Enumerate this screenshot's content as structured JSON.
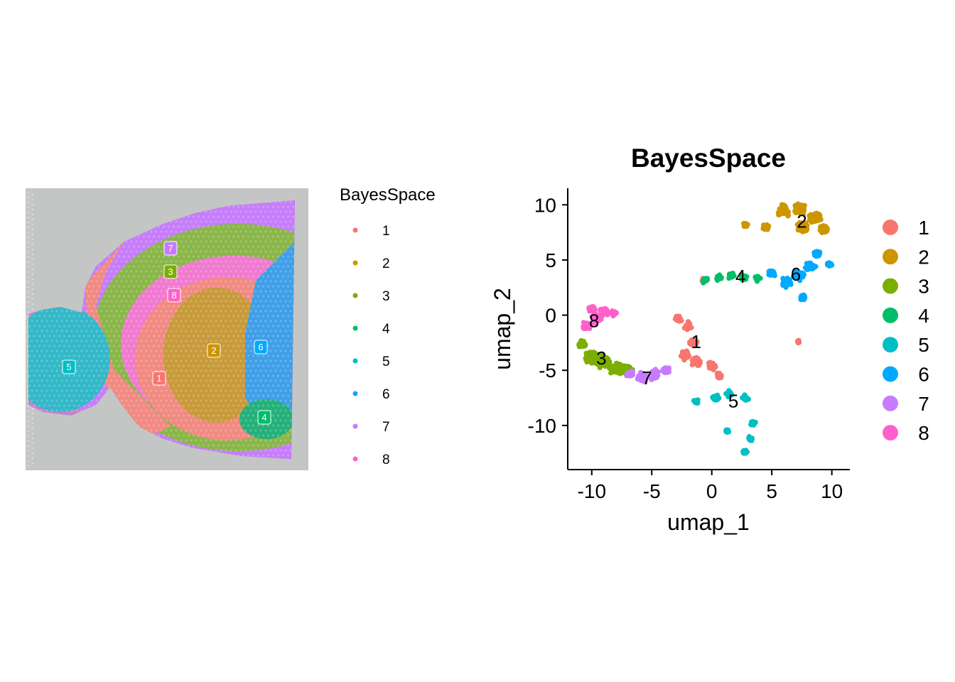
{
  "cluster_colors": {
    "1": "#F8766D",
    "2": "#CD9600",
    "3": "#7CAE00",
    "4": "#00BE67",
    "5": "#00BFC4",
    "6": "#00A9FF",
    "7": "#C77CFF",
    "8": "#FF61CC"
  },
  "chart_data": [
    {
      "type": "scatter",
      "panel": "spatial",
      "legend": {
        "title": "BayesSpace",
        "placement": "right",
        "entries": [
          "1",
          "2",
          "3",
          "4",
          "5",
          "6",
          "7",
          "8"
        ]
      },
      "cluster_labels": [
        {
          "label": "1"
        },
        {
          "label": "2"
        },
        {
          "label": "3"
        },
        {
          "label": "4"
        },
        {
          "label": "5"
        },
        {
          "label": "6"
        },
        {
          "label": "7"
        },
        {
          "label": "8"
        }
      ]
    },
    {
      "type": "scatter",
      "panel": "umap",
      "title": "BayesSpace",
      "xlabel": "umap_1",
      "ylabel": "umap_2",
      "xlim": [
        -12,
        11.5
      ],
      "ylim": [
        -14,
        11.5
      ],
      "xticks": [
        -10,
        -5,
        0,
        5,
        10
      ],
      "yticks": [
        -10,
        -5,
        0,
        5,
        10
      ],
      "xtick_labels": [
        "-10",
        "-5",
        "0",
        "5",
        "10"
      ],
      "ytick_labels": [
        "-10",
        "-5",
        "0",
        "5",
        "10"
      ],
      "grid": false,
      "legend": {
        "placement": "right",
        "entries": [
          "1",
          "2",
          "3",
          "4",
          "5",
          "6",
          "7",
          "8"
        ]
      },
      "clusters": [
        {
          "label": "1",
          "x": -1.3,
          "y": -2.4
        },
        {
          "label": "2",
          "x": 7.5,
          "y": 8.5
        },
        {
          "label": "3",
          "x": -9.2,
          "y": -3.9
        },
        {
          "label": "4",
          "x": 2.4,
          "y": 3.5
        },
        {
          "label": "5",
          "x": 1.8,
          "y": -7.8
        },
        {
          "label": "6",
          "x": 7.0,
          "y": 3.7
        },
        {
          "label": "7",
          "x": -5.4,
          "y": -5.7
        },
        {
          "label": "8",
          "x": -9.8,
          "y": -0.5
        }
      ]
    }
  ]
}
